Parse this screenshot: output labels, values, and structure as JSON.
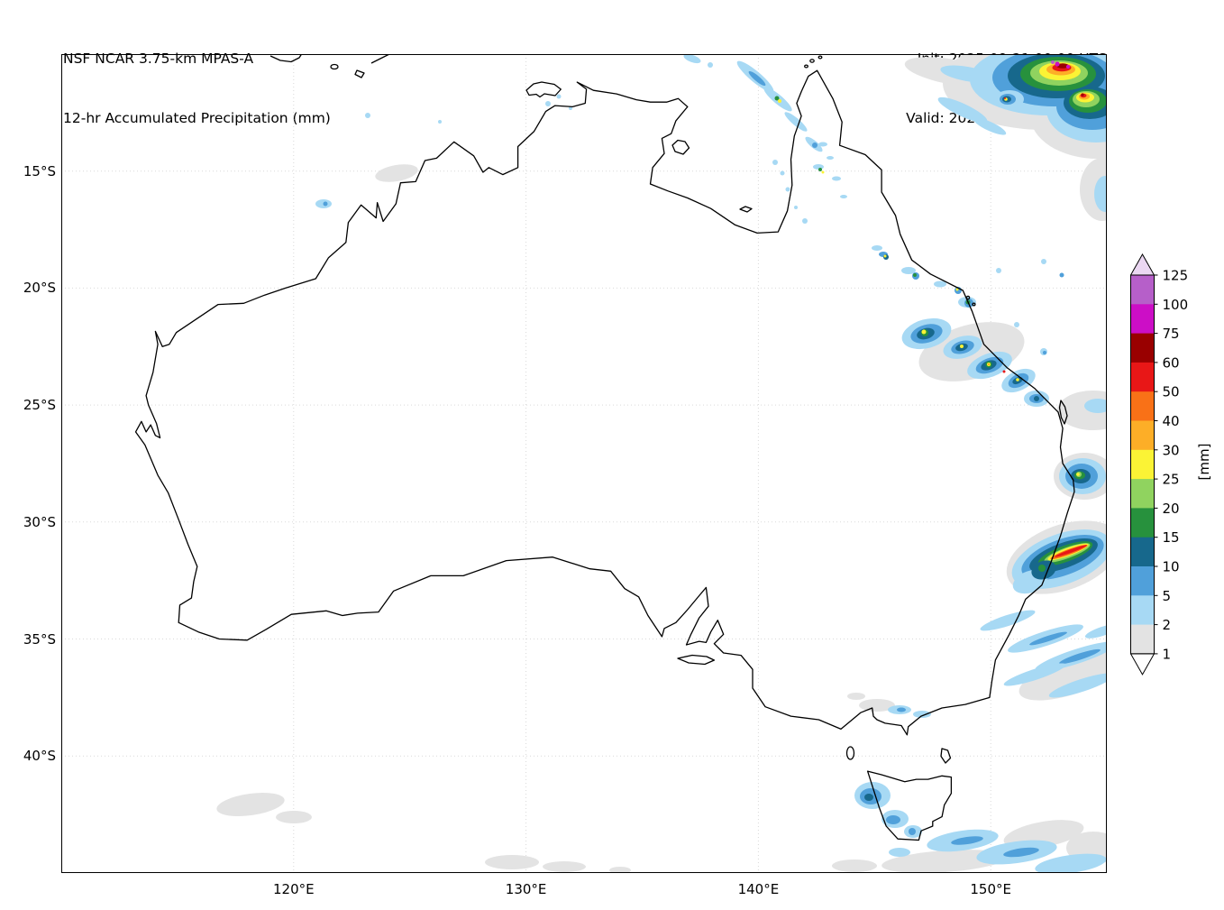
{
  "header": {
    "model": "NSF NCAR 3.75-km MPAS-A",
    "product": "12-hr Accumulated Precipitation (mm)",
    "init": "Init: 2025-09-21 00:00 UTC",
    "valid": "Valid: 2025-09-23 00:00 UTC"
  },
  "map": {
    "region": "Australia",
    "lat_ticks": [
      "15°S",
      "20°S",
      "25°S",
      "30°S",
      "35°S",
      "40°S"
    ],
    "lon_ticks": [
      "120°E",
      "130°E",
      "140°E",
      "150°E"
    ]
  },
  "colorbar": {
    "unit": "[mm]",
    "tick_labels": [
      "125",
      "100",
      "75",
      "60",
      "50",
      "40",
      "30",
      "25",
      "20",
      "15",
      "10",
      "5",
      "2",
      "1"
    ],
    "segment_colors_top_to_bottom": [
      "#B65FC9",
      "#CC0EC6",
      "#990000",
      "#E81717",
      "#F97117",
      "#FDAE27",
      "#FBF335",
      "#90D35F",
      "#27913D",
      "#17688C",
      "#50A0DA",
      "#A7D9F4",
      "#E3E3E3"
    ],
    "arrow_top_color": "#EBD7F2",
    "arrow_bottom_color": "#FFFFFF"
  }
}
